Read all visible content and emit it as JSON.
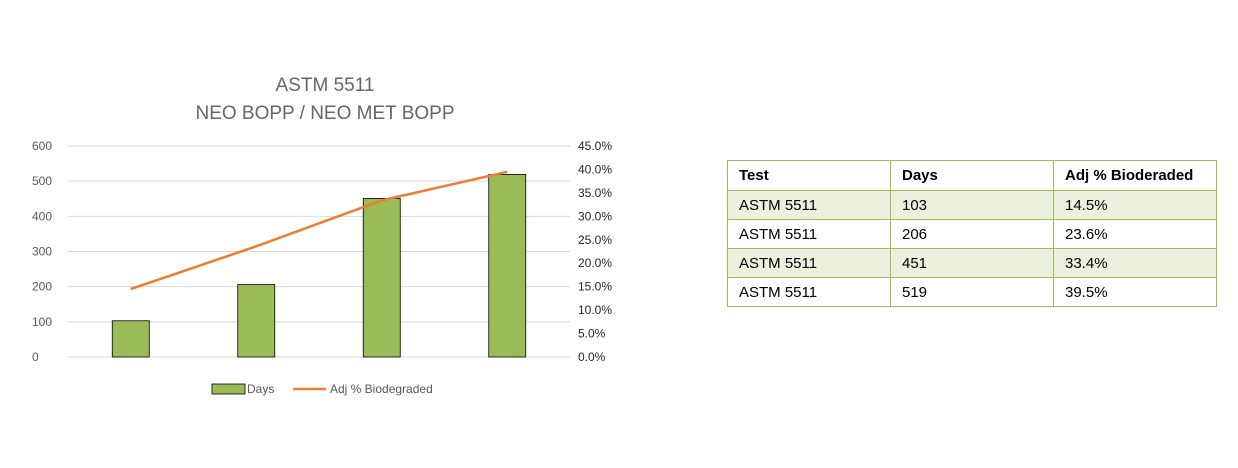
{
  "chart_data": {
    "type": "bar",
    "title_lines": [
      "ASTM 5511",
      "NEO BOPP / NEO MET BOPP"
    ],
    "categories": [
      "",
      "",
      "",
      ""
    ],
    "series": [
      {
        "name": "Days",
        "kind": "bar",
        "axis": "left",
        "values": [
          103,
          206,
          451,
          519
        ]
      },
      {
        "name": "Adj % Biodegraded",
        "kind": "line",
        "axis": "right",
        "values": [
          14.5,
          23.6,
          33.4,
          39.5
        ]
      }
    ],
    "y_left": {
      "min": 0,
      "max": 600,
      "step": 100,
      "ticks": [
        "0",
        "100",
        "200",
        "300",
        "400",
        "500",
        "600"
      ]
    },
    "y_right": {
      "min": 0,
      "max": 45,
      "step": 5,
      "ticks": [
        "0.0%",
        "5.0%",
        "10.0%",
        "15.0%",
        "20.0%",
        "25.0%",
        "30.0%",
        "35.0%",
        "40.0%",
        "45.0%"
      ]
    },
    "grid": true,
    "legend_placement": "bottom",
    "colors": {
      "bar_fill": "#9bbb59",
      "bar_stroke": "#000000",
      "line": "#ed7d31",
      "grid": "#d9d9d9"
    }
  },
  "table": {
    "headers": [
      "Test",
      "Days",
      "Adj % Bioderaded"
    ],
    "rows": [
      [
        "ASTM 5511",
        "103",
        "14.5%"
      ],
      [
        "ASTM 5511",
        "206",
        "23.6%"
      ],
      [
        "ASTM 5511",
        "451",
        "33.4%"
      ],
      [
        "ASTM 5511",
        "519",
        "39.5%"
      ]
    ],
    "colors": {
      "border": "#9bbb59",
      "band": "#ebf1de"
    }
  }
}
